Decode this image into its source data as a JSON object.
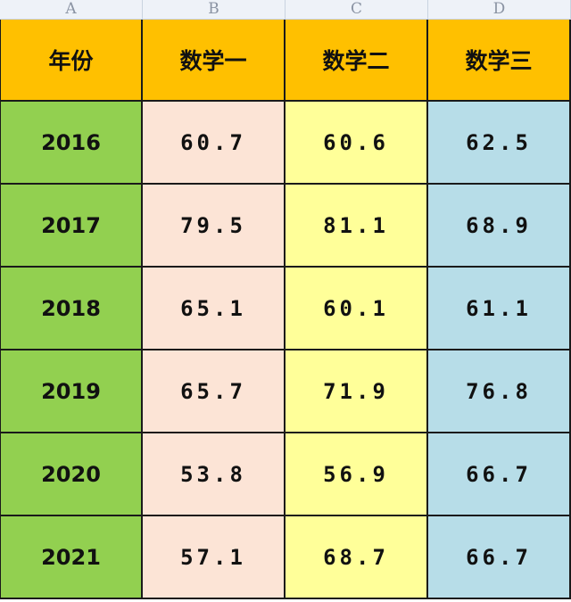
{
  "columns": [
    "A",
    "B",
    "C",
    "D"
  ],
  "headers": [
    "年份",
    "数学一",
    "数学二",
    "数学三"
  ],
  "rows": [
    {
      "year": "2016",
      "math1": "60.7",
      "math2": "60.6",
      "math3": "62.5"
    },
    {
      "year": "2017",
      "math1": "79.5",
      "math2": "81.1",
      "math3": "68.9"
    },
    {
      "year": "2018",
      "math1": "65.1",
      "math2": "60.1",
      "math3": "61.1"
    },
    {
      "year": "2019",
      "math1": "65.7",
      "math2": "71.9",
      "math3": "76.8"
    },
    {
      "year": "2020",
      "math1": "53.8",
      "math2": "56.9",
      "math3": "66.7"
    },
    {
      "year": "2021",
      "math1": "57.1",
      "math2": "68.7",
      "math3": "66.7"
    }
  ],
  "colors": {
    "header_fill": "#ffc000",
    "year_fill": "#92d050",
    "math1_fill": "#fce4d6",
    "math2_fill": "#ffff99",
    "math3_fill": "#b7dde8"
  }
}
